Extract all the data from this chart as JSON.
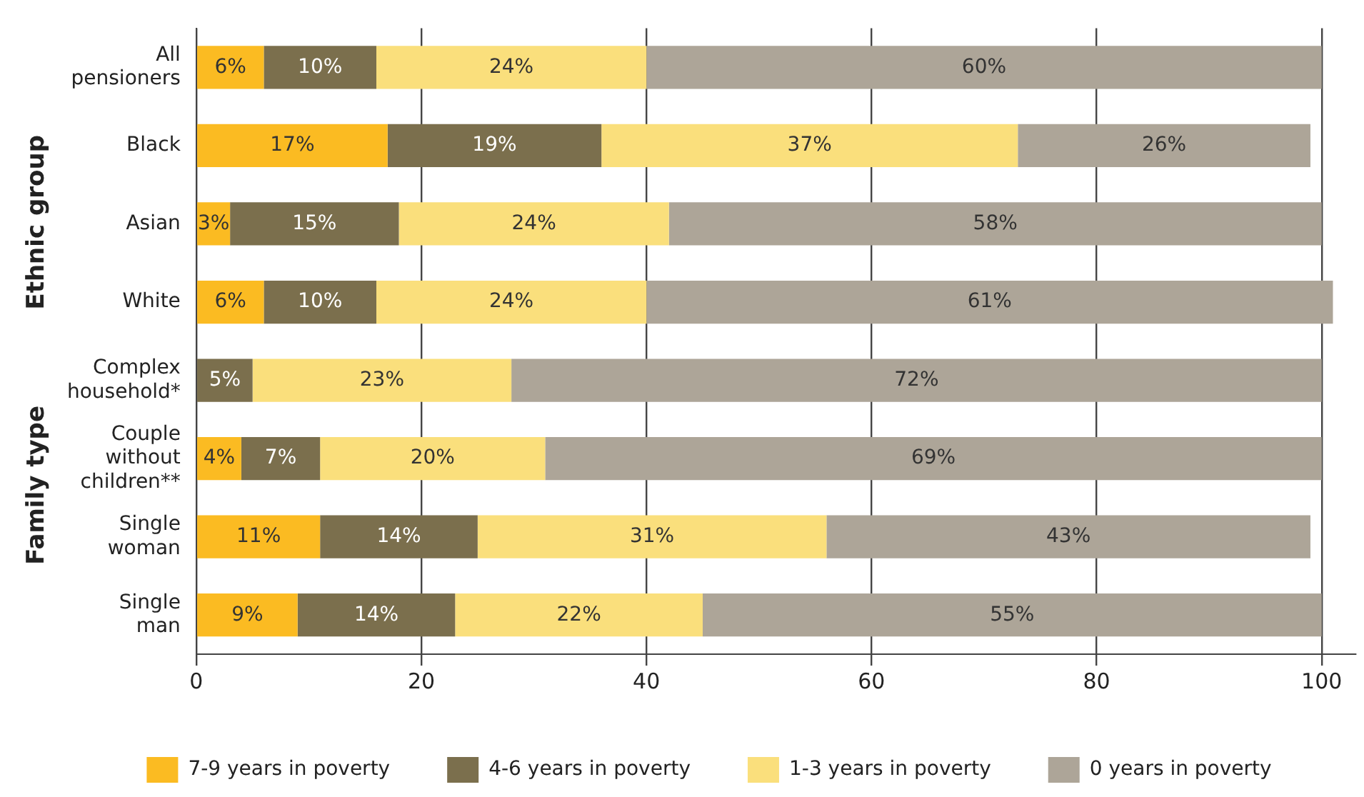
{
  "chart_data": {
    "type": "bar",
    "orientation": "horizontal",
    "stacked": true,
    "categories": [
      "All pensioners",
      "Black",
      "Asian",
      "White",
      "Complex household*",
      "Couple without children**",
      "Single woman",
      "Single man"
    ],
    "series": [
      {
        "name": "7-9 years in poverty",
        "color": "#fbbb22",
        "values": [
          6,
          17,
          3,
          6,
          null,
          4,
          11,
          9
        ],
        "value_labels": [
          "6%",
          "17%",
          "3%",
          "6%",
          null,
          "4%",
          "11%",
          "9%"
        ]
      },
      {
        "name": "4-6 years in poverty",
        "color": "#7b6f4d",
        "values": [
          10,
          19,
          15,
          10,
          5,
          7,
          14,
          14
        ],
        "value_labels": [
          "10%",
          "19%",
          "15%",
          "10%",
          "5%",
          "7%",
          "14%",
          "14%"
        ]
      },
      {
        "name": "1-3 years in poverty",
        "color": "#fadf7c",
        "values": [
          24,
          37,
          24,
          24,
          23,
          20,
          31,
          22
        ],
        "value_labels": [
          "24%",
          "37%",
          "24%",
          "24%",
          "23%",
          "20%",
          "31%",
          "22%"
        ]
      },
      {
        "name": "0 years in poverty",
        "color": "#ada598",
        "values": [
          60,
          26,
          58,
          61,
          72,
          69,
          43,
          55
        ],
        "value_labels": [
          "60%",
          "26%",
          "58%",
          "61%",
          "72%",
          "69%",
          "43%",
          "55%"
        ]
      }
    ],
    "xlim": [
      0,
      103
    ],
    "xticks": [
      0,
      20,
      40,
      60,
      80,
      100
    ],
    "grid": "x",
    "legend": "bottom",
    "annotations": [
      "Ethnic group",
      "Family type"
    ]
  }
}
